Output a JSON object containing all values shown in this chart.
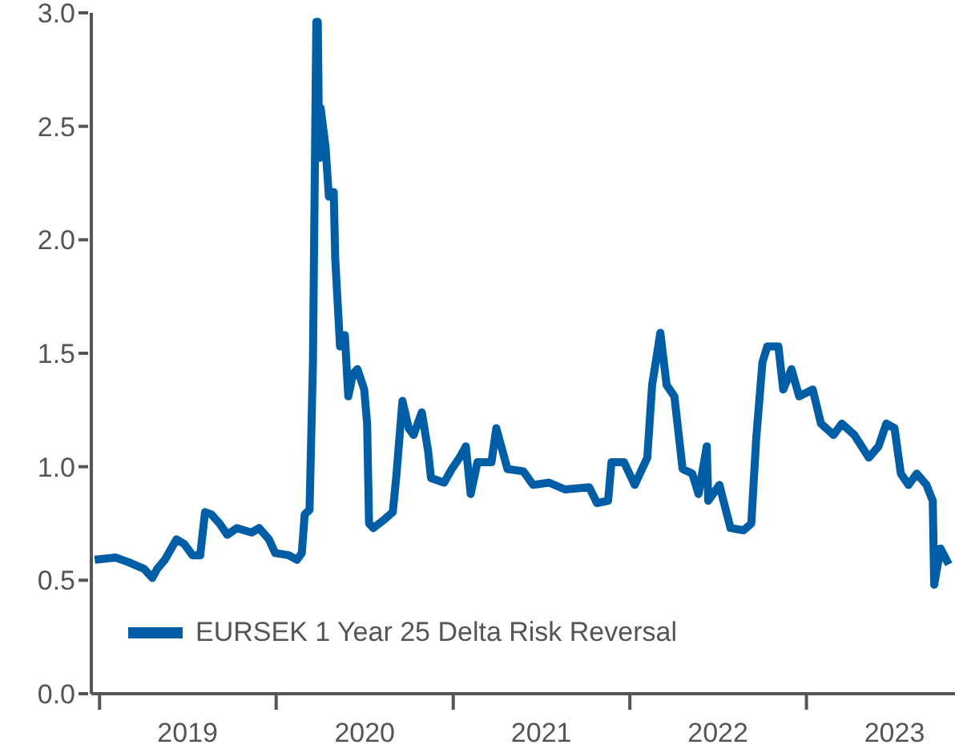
{
  "chart_data": {
    "type": "line",
    "legend": "bottom left",
    "marker": "none",
    "line_style": "solid",
    "x": [
      "2018-12-22",
      "2019-02-03",
      "2019-03-01",
      "2019-04-03",
      "2019-04-20",
      "2019-04-30",
      "2019-05-16",
      "2019-06-09",
      "2019-06-25",
      "2019-07-12",
      "2019-07-28",
      "2019-08-07",
      "2019-08-20",
      "2019-09-06",
      "2019-09-22",
      "2019-10-12",
      "2019-11-11",
      "2019-11-27",
      "2019-12-17",
      "2019-12-30",
      "2020-01-27",
      "2020-02-13",
      "2020-02-23",
      "2020-02-29",
      "2020-03-10",
      "2020-03-17",
      "2020-03-24",
      "2020-03-27",
      "2020-03-30",
      "2020-04-02",
      "2020-04-12",
      "2020-04-19",
      "2020-04-29",
      "2020-05-02",
      "2020-05-12",
      "2020-05-22",
      "2020-05-29",
      "2020-06-08",
      "2020-06-17",
      "2020-07-01",
      "2020-07-07",
      "2020-07-11",
      "2020-07-20",
      "2020-08-13",
      "2020-08-29",
      "2020-09-05",
      "2020-09-18",
      "2020-10-01",
      "2020-10-11",
      "2020-10-28",
      "2020-11-10",
      "2020-11-16",
      "2020-12-13",
      "2020-12-29",
      "2021-01-14",
      "2021-01-27",
      "2021-02-06",
      "2021-02-20",
      "2021-03-21",
      "2021-03-31",
      "2021-04-23",
      "2021-05-26",
      "2021-06-15",
      "2021-07-18",
      "2021-08-20",
      "2021-10-09",
      "2021-10-25",
      "2021-11-17",
      "2021-11-24",
      "2021-12-20",
      "2022-01-11",
      "2022-02-06",
      "2022-02-16",
      "2022-03-05",
      "2022-03-18",
      "2022-04-03",
      "2022-04-20",
      "2022-05-10",
      "2022-05-23",
      "2022-06-09",
      "2022-06-12",
      "2022-07-05",
      "2022-07-28",
      "2022-08-24",
      "2022-09-09",
      "2022-09-19",
      "2022-10-02",
      "2022-10-12",
      "2022-11-04",
      "2022-11-14",
      "2022-12-01",
      "2022-12-17",
      "2023-01-14",
      "2023-01-31",
      "2023-02-26",
      "2023-03-15",
      "2023-04-10",
      "2023-05-10",
      "2023-05-30",
      "2023-06-15",
      "2023-07-02",
      "2023-07-15",
      "2023-07-31",
      "2023-08-17",
      "2023-09-06",
      "2023-09-19",
      "2023-09-22",
      "2023-10-05",
      "2023-10-22"
    ],
    "series": [
      {
        "name": "EURSEK 1 Year 25 Delta Risk Reversal",
        "color": "#005ea6",
        "values": [
          0.59,
          0.6,
          0.58,
          0.55,
          0.51,
          0.55,
          0.59,
          0.68,
          0.66,
          0.61,
          0.61,
          0.8,
          0.79,
          0.75,
          0.7,
          0.73,
          0.71,
          0.73,
          0.68,
          0.62,
          0.61,
          0.59,
          0.62,
          0.79,
          0.81,
          1.46,
          2.96,
          2.96,
          2.36,
          2.58,
          2.41,
          2.19,
          2.21,
          1.92,
          1.53,
          1.58,
          1.31,
          1.41,
          1.43,
          1.34,
          1.19,
          0.75,
          0.73,
          0.77,
          0.8,
          0.95,
          1.29,
          1.17,
          1.14,
          1.24,
          1.07,
          0.95,
          0.93,
          0.99,
          1.04,
          1.09,
          0.88,
          1.02,
          1.02,
          1.17,
          0.99,
          0.98,
          0.92,
          0.93,
          0.9,
          0.91,
          0.84,
          0.85,
          1.02,
          1.02,
          0.92,
          1.04,
          1.36,
          1.59,
          1.36,
          1.31,
          0.99,
          0.97,
          0.88,
          1.09,
          0.85,
          0.92,
          0.73,
          0.72,
          0.75,
          1.12,
          1.46,
          1.53,
          1.53,
          1.34,
          1.43,
          1.31,
          1.34,
          1.19,
          1.14,
          1.19,
          1.14,
          1.04,
          1.09,
          1.19,
          1.17,
          0.97,
          0.92,
          0.97,
          0.92,
          0.85,
          0.48,
          0.64,
          0.57
        ]
      }
    ],
    "xlim": [
      "2018-12-15",
      "2023-11-04"
    ],
    "xticks": [
      {
        "value": "2019-01-01",
        "label": null
      },
      {
        "value": "2019-07-02",
        "label": "2019"
      },
      {
        "value": "2020-01-01",
        "label": null
      },
      {
        "value": "2020-07-02",
        "label": "2020"
      },
      {
        "value": "2021-01-01",
        "label": null
      },
      {
        "value": "2021-07-02",
        "label": "2021"
      },
      {
        "value": "2022-01-01",
        "label": null
      },
      {
        "value": "2022-07-02",
        "label": "2022"
      },
      {
        "value": "2023-01-01",
        "label": null
      },
      {
        "value": "2023-07-02",
        "label": "2023"
      }
    ],
    "ylim": [
      0,
      3
    ],
    "yticks": [
      {
        "value": 0,
        "label": "0.0"
      },
      0.5,
      {
        "value": 1,
        "label": "1.0"
      },
      1.5,
      {
        "value": 2,
        "label": "2.0"
      },
      2.5,
      {
        "value": 3,
        "label": "3.0"
      }
    ]
  }
}
